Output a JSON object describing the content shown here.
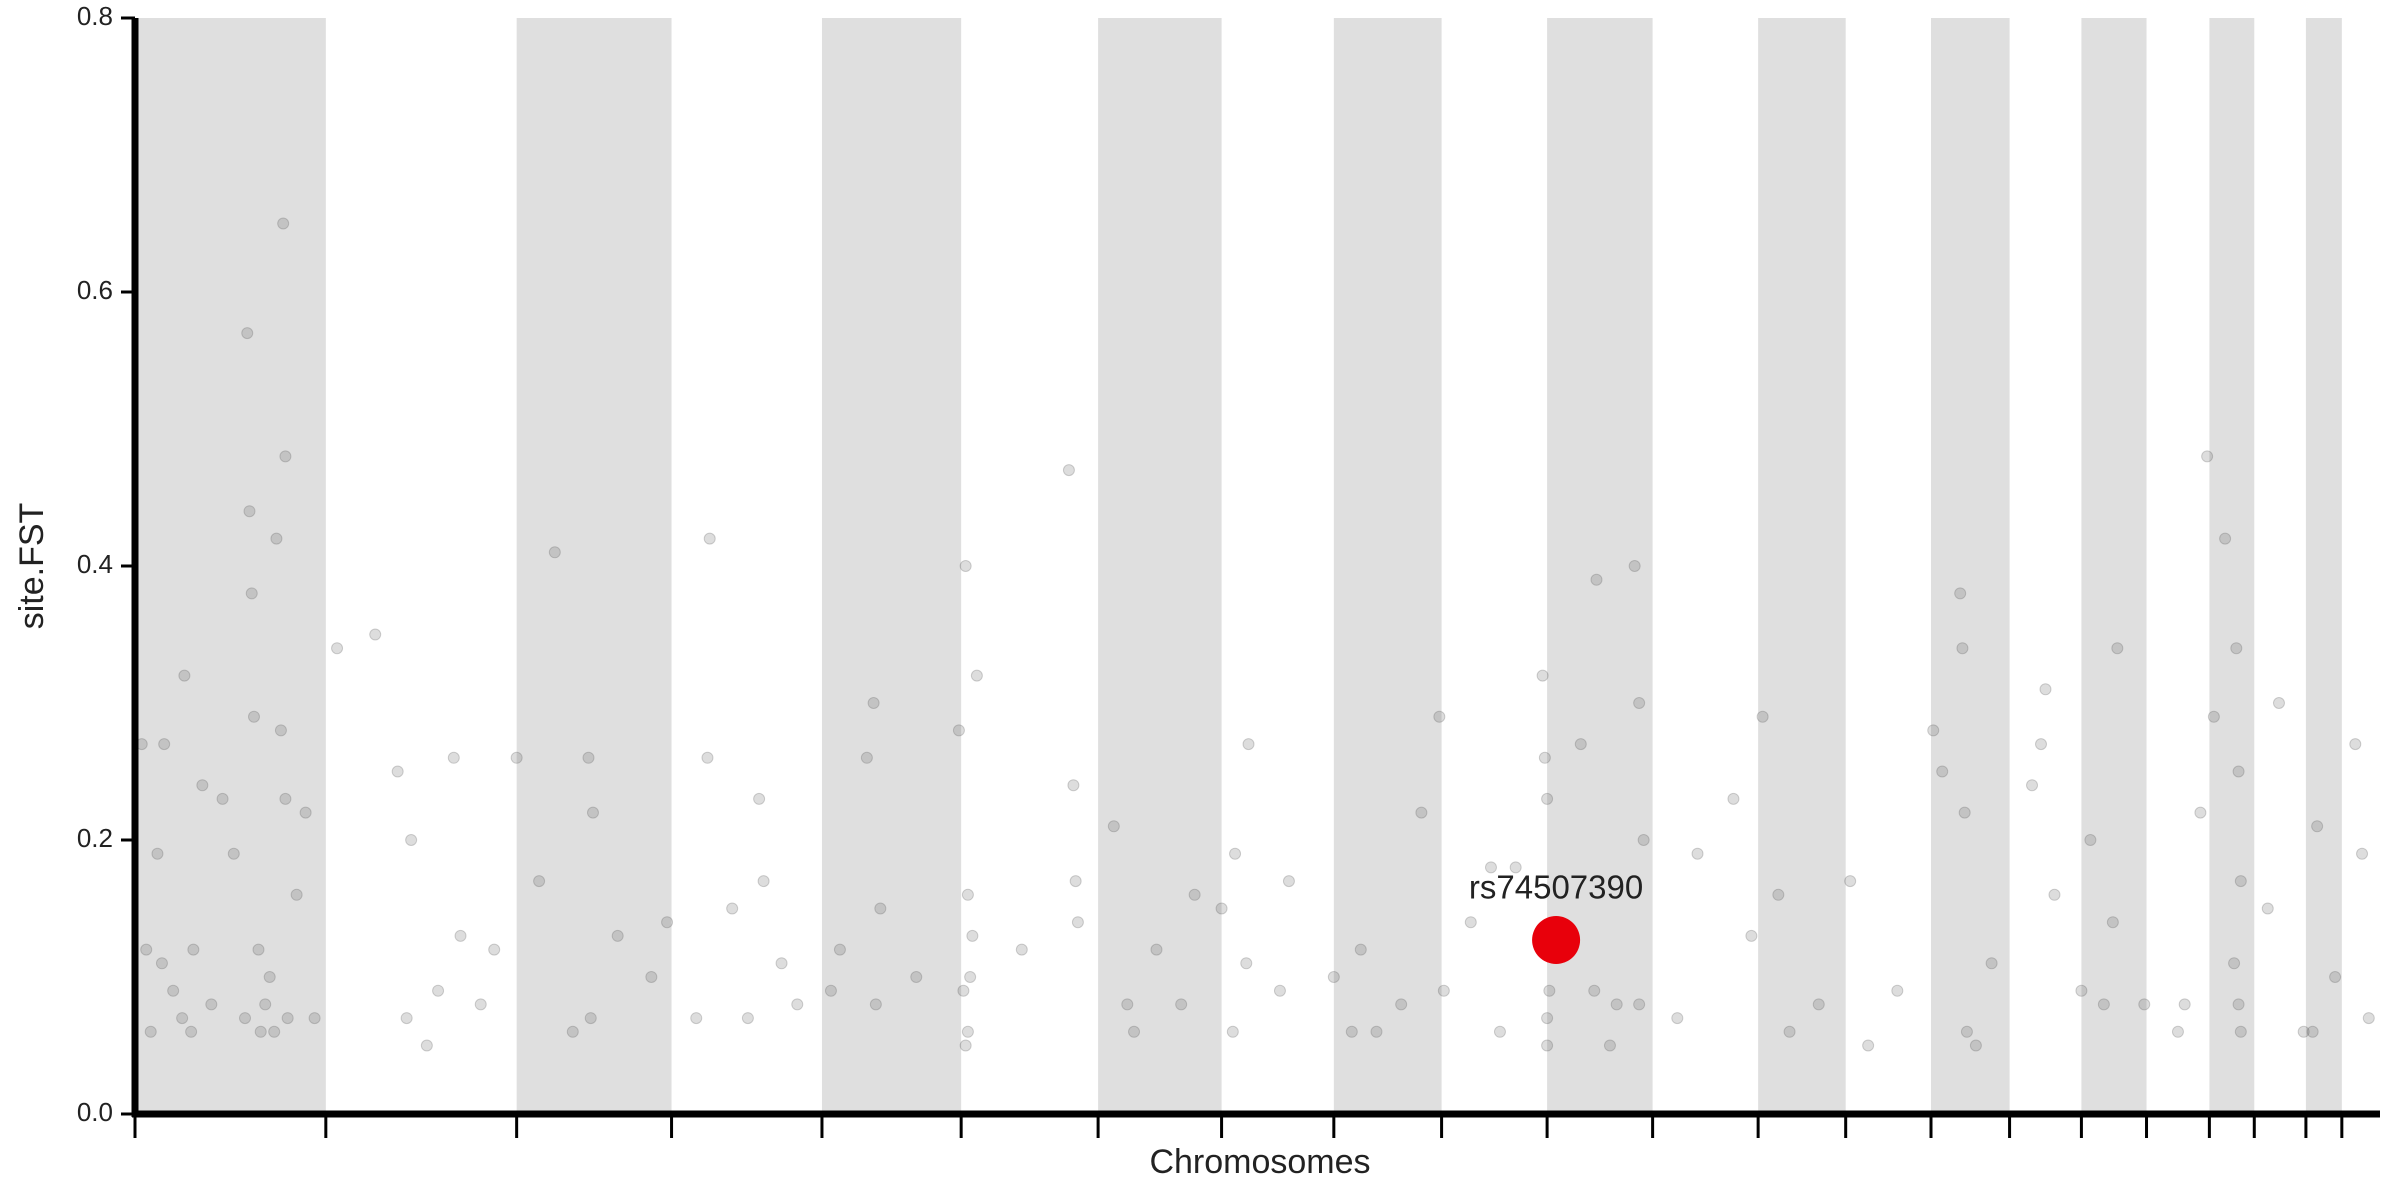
{
  "chart_data": {
    "type": "scatter",
    "x_label": "Chromosomes",
    "y_label": "site.FST",
    "xlim": [
      0,
      100
    ],
    "ylim": [
      0,
      0.8
    ],
    "xticks": [
      0,
      8.5,
      17.0,
      23.9,
      30.6,
      36.8,
      42.9,
      48.4,
      53.4,
      58.2,
      62.9,
      67.6,
      72.3,
      76.2,
      80.0,
      83.5,
      86.7,
      89.6,
      92.4,
      94.4,
      96.7,
      98.3
    ],
    "yticks": [
      {
        "value": 0,
        "label": "0.0"
      },
      0.2,
      0.4,
      0.6,
      0.8
    ],
    "band_color": "#dfdfdf",
    "color": "#555555",
    "x": [
      0.3,
      0.5,
      0.7,
      1.0,
      1.3,
      1.2,
      1.7,
      2.1,
      2.2,
      2.6,
      3.0,
      3.4,
      3.9,
      4.4,
      5.0,
      5.1,
      5.2,
      5.3,
      5.5,
      5.8,
      6.3,
      6.6,
      6.7,
      6.7,
      6.8,
      6.5,
      6.0,
      7.2,
      7.6,
      4.9,
      5.6,
      6.2,
      9.0,
      10.7,
      11.7,
      12.1,
      12.3,
      13.0,
      14.2,
      14.5,
      15.4,
      16.0,
      17.0,
      18.0,
      18.7,
      20.2,
      20.4,
      20.3,
      21.5,
      23.0,
      23.7,
      25.6,
      25.5,
      26.6,
      27.8,
      28.0,
      27.3,
      28.8,
      29.5,
      31.4,
      32.6,
      32.9,
      33.2,
      33.0,
      34.8,
      36.7,
      37.0,
      37.1,
      37.2,
      37.1,
      37.5,
      37.3,
      39.5,
      41.6,
      41.8,
      41.9,
      42.0,
      43.6,
      44.2,
      45.5,
      46.6,
      47.2,
      48.4,
      48.9,
      49.0,
      49.6,
      49.5,
      51.4,
      53.4,
      54.2,
      54.6,
      56.4,
      57.3,
      58.1,
      58.3,
      59.5,
      60.4,
      61.5,
      62.7,
      62.8,
      62.9,
      62.9,
      63.0,
      64.4,
      65.1,
      65.0,
      66.8,
      67.0,
      67.2,
      67.0,
      66.0,
      69.6,
      71.2,
      72.0,
      72.5,
      73.2,
      75.0,
      76.4,
      78.5,
      80.1,
      80.5,
      81.3,
      81.4,
      81.5,
      81.6,
      82.7,
      84.5,
      84.9,
      85.1,
      85.5,
      86.7,
      87.1,
      88.3,
      88.1,
      89.5,
      91.3,
      92.0,
      92.3,
      92.6,
      93.1,
      93.6,
      93.7,
      93.8,
      93.7,
      93.8,
      95.5,
      95.0,
      97.2,
      97.0,
      98.9,
      99.2,
      99.5,
      2.5,
      8.0,
      13.5,
      19.5,
      25.0,
      31.0,
      36.9,
      37.0,
      44.5,
      51.0,
      55.3,
      60.8,
      62.9,
      65.7,
      68.7,
      73.7,
      77.2,
      82.0,
      87.7,
      91.0,
      93.5,
      96.6,
      98.0
    ],
    "values": [
      0.27,
      0.12,
      0.06,
      0.19,
      0.27,
      0.11,
      0.09,
      0.07,
      0.32,
      0.12,
      0.24,
      0.08,
      0.23,
      0.19,
      0.57,
      0.44,
      0.38,
      0.29,
      0.12,
      0.08,
      0.42,
      0.65,
      0.48,
      0.23,
      0.07,
      0.28,
      0.1,
      0.16,
      0.22,
      0.07,
      0.06,
      0.06,
      0.34,
      0.35,
      0.25,
      0.07,
      0.2,
      0.05,
      0.26,
      0.13,
      0.08,
      0.12,
      0.26,
      0.17,
      0.41,
      0.26,
      0.22,
      0.07,
      0.13,
      0.1,
      0.14,
      0.42,
      0.26,
      0.15,
      0.23,
      0.17,
      0.07,
      0.11,
      0.08,
      0.12,
      0.26,
      0.3,
      0.15,
      0.08,
      0.1,
      0.28,
      0.4,
      0.16,
      0.1,
      0.06,
      0.32,
      0.13,
      0.12,
      0.47,
      0.24,
      0.17,
      0.14,
      0.21,
      0.08,
      0.12,
      0.08,
      0.16,
      0.15,
      0.06,
      0.19,
      0.27,
      0.11,
      0.17,
      0.1,
      0.06,
      0.12,
      0.08,
      0.22,
      0.29,
      0.09,
      0.14,
      0.18,
      0.18,
      0.32,
      0.26,
      0.23,
      0.07,
      0.09,
      0.27,
      0.39,
      0.09,
      0.4,
      0.3,
      0.2,
      0.08,
      0.08,
      0.19,
      0.23,
      0.13,
      0.29,
      0.16,
      0.08,
      0.17,
      0.09,
      0.28,
      0.25,
      0.38,
      0.34,
      0.22,
      0.06,
      0.11,
      0.24,
      0.27,
      0.31,
      0.16,
      0.09,
      0.2,
      0.34,
      0.14,
      0.08,
      0.08,
      0.22,
      0.48,
      0.29,
      0.42,
      0.34,
      0.25,
      0.17,
      0.08,
      0.06,
      0.3,
      0.15,
      0.21,
      0.06,
      0.27,
      0.19,
      0.07,
      0.06,
      0.07,
      0.09,
      0.06,
      0.07,
      0.09,
      0.09,
      0.05,
      0.06,
      0.09,
      0.06,
      0.06,
      0.05,
      0.05,
      0.07,
      0.06,
      0.05,
      0.05,
      0.08,
      0.06,
      0.11,
      0.06,
      0.1
    ],
    "highlight": {
      "label": "rs74507390",
      "x": 63.3,
      "value": 0.127,
      "color": "#e8000b"
    }
  }
}
